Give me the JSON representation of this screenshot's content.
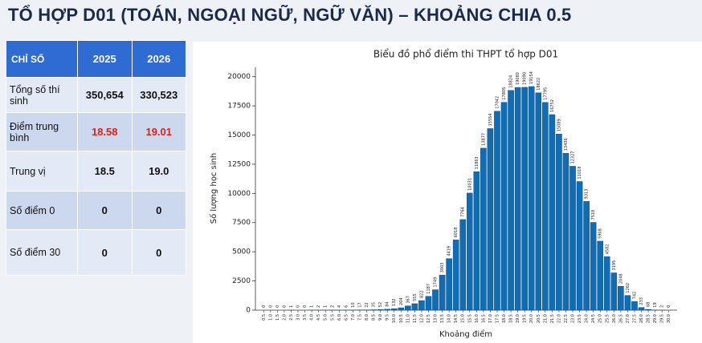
{
  "header": {
    "title": "TỔ HỢP D01 (TOÁN, NGOẠI NGỮ, NGỮ VĂN) – KHOẢNG CHIA 0.5"
  },
  "table": {
    "header": [
      "CHỈ SỐ",
      "2025",
      "2026"
    ],
    "rows": [
      [
        "Tổng số thí sinh",
        "350,654",
        "330,523"
      ],
      [
        "Điểm trung bình",
        "18.58",
        "19.01"
      ],
      [
        "Trung vị",
        "18.5",
        "19.0"
      ],
      [
        "Số điểm 0",
        "0",
        "0"
      ],
      [
        "Số điểm 30",
        "0",
        "0"
      ]
    ]
  },
  "chart_data": {
    "type": "bar",
    "title": "Biểu đồ phổ điểm thi THPT tổ hợp D01",
    "x_label": "Khoảng điểm",
    "y_label": "Số lượng học sinh",
    "categories": [
      "0.5",
      "1.0",
      "1.5",
      "2.0",
      "2.5",
      "3.0",
      "3.5",
      "4.0",
      "4.5",
      "5.0",
      "5.5",
      "6.0",
      "6.5",
      "7.0",
      "7.5",
      "8.0",
      "8.5",
      "9.0",
      "9.5",
      "10.0",
      "10.5",
      "11.0",
      "11.5",
      "12.0",
      "12.5",
      "13.0",
      "13.5",
      "14.0",
      "14.5",
      "15.0",
      "15.5",
      "16.0",
      "16.5",
      "17.0",
      "17.5",
      "18.0",
      "18.5",
      "19.0",
      "19.5",
      "20.0",
      "20.5",
      "21.0",
      "21.5",
      "22.0",
      "22.5",
      "23.0",
      "23.5",
      "24.0",
      "24.5",
      "25.0",
      "25.5",
      "26.0",
      "26.5",
      "27.0",
      "27.5",
      "28.0",
      "28.5",
      "29.0",
      "29.5",
      "30.0"
    ],
    "values": [
      0,
      0,
      0,
      0,
      1,
      0,
      0,
      1,
      2,
      1,
      2,
      4,
      6,
      10,
      17,
      22,
      35,
      52,
      84,
      132,
      204,
      367,
      555,
      822,
      1187,
      1749,
      3003,
      4419,
      6018,
      7764,
      10031,
      11863,
      13877,
      15554,
      17042,
      17805,
      18824,
      19080,
      19090,
      19154,
      18622,
      17795,
      16752,
      15089,
      13436,
      12327,
      11018,
      9313,
      7518,
      5908,
      4582,
      3195,
      2048,
      1262,
      742,
      233,
      68,
      19,
      2,
      0
    ],
    "color": "#0f6db5",
    "ylim": [
      0,
      20800
    ],
    "yticks": [
      0,
      2500,
      5000,
      7500,
      10000,
      12500,
      15000,
      17500,
      20000
    ],
    "grid": false
  }
}
